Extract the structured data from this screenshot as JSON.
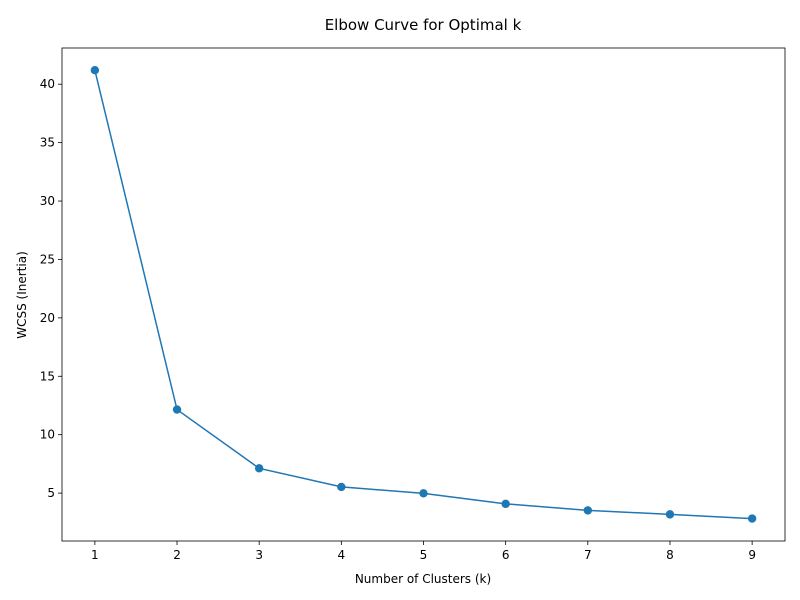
{
  "chart_data": {
    "type": "line",
    "title": "Elbow Curve for Optimal k",
    "xlabel": "Number of Clusters (k)",
    "ylabel": "WCSS (Inertia)",
    "x": [
      1,
      2,
      3,
      4,
      5,
      6,
      7,
      8,
      9
    ],
    "series": [
      {
        "values": [
          41.2,
          12.15,
          7.12,
          5.53,
          4.98,
          4.08,
          3.52,
          3.18,
          2.82
        ],
        "color": "#1f77b4",
        "marker": "circle"
      }
    ],
    "xlim": [
      0.6,
      9.4
    ],
    "ylim": [
      0.9,
      43.1
    ],
    "xticks": [
      1,
      2,
      3,
      4,
      5,
      6,
      7,
      8,
      9
    ],
    "yticks": [
      5,
      10,
      15,
      20,
      25,
      30,
      35,
      40
    ],
    "grid": false,
    "legend": "none"
  }
}
